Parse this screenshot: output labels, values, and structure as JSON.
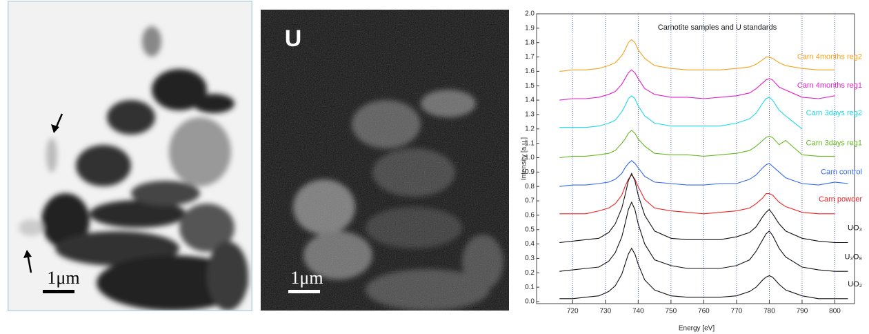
{
  "panels": [
    {
      "scale_bar": "1μm"
    },
    {
      "label": "U",
      "scale_bar": "1μm"
    }
  ],
  "chart_data": {
    "type": "line",
    "title": "Carnotite samples and U standards",
    "x_label": "Energy [eV]",
    "y_label": "Intensity [a.u.]",
    "xlim": [
      709,
      806
    ],
    "ylim": [
      0,
      2
    ],
    "xticks": [
      720,
      730,
      740,
      750,
      760,
      770,
      780,
      790,
      800
    ],
    "yticks": [
      {
        "value": 0,
        "label": "0.0"
      },
      0.1,
      0.2,
      0.3,
      0.4,
      0.5,
      0.6,
      0.7,
      0.8,
      0.9,
      {
        "value": 1,
        "label": "1.0"
      },
      1.1,
      1.2,
      1.3,
      1.4,
      1.5,
      1.6,
      1.7,
      1.8,
      1.9,
      {
        "value": 2,
        "label": "2.0"
      }
    ],
    "grid": "x",
    "x": [
      716,
      720,
      724,
      728,
      731,
      733,
      735,
      736,
      737,
      738,
      739,
      740,
      742,
      745,
      750,
      755,
      760,
      765,
      770,
      774,
      776,
      778,
      779,
      780,
      781,
      783,
      785,
      790,
      795,
      800,
      804
    ],
    "series": [
      {
        "name": "Carn 4months reg2",
        "color": "#f5a21c",
        "values": [
          1.6,
          1.61,
          1.61,
          1.62,
          1.64,
          1.66,
          1.71,
          1.75,
          1.8,
          1.82,
          1.8,
          1.75,
          1.69,
          1.64,
          1.62,
          1.61,
          1.61,
          1.61,
          1.62,
          1.63,
          1.65,
          1.68,
          1.7,
          1.7,
          1.69,
          1.66,
          1.64,
          1.62,
          1.61,
          1.61,
          null
        ]
      },
      {
        "name": "Carn 4months reg1",
        "color": "#e01ec8",
        "values": [
          1.4,
          1.41,
          1.41,
          1.42,
          1.44,
          1.46,
          1.51,
          1.55,
          1.59,
          1.61,
          1.59,
          1.55,
          1.48,
          1.44,
          1.42,
          1.42,
          1.41,
          1.42,
          1.43,
          1.45,
          1.48,
          1.52,
          1.54,
          1.55,
          1.54,
          1.49,
          1.47,
          1.42,
          1.41,
          1.43,
          null
        ]
      },
      {
        "name": "Carn 3days reg2",
        "color": "#1ed8ea",
        "values": [
          1.21,
          1.21,
          1.21,
          1.22,
          1.24,
          1.26,
          1.32,
          1.36,
          1.41,
          1.43,
          1.41,
          1.36,
          1.29,
          1.24,
          1.22,
          1.22,
          1.22,
          1.22,
          1.24,
          1.27,
          1.31,
          1.38,
          1.41,
          1.42,
          1.4,
          1.33,
          1.29,
          1.2,
          null,
          null,
          null
        ]
      },
      {
        "name": "Carn 3days reg1",
        "color": "#66b822",
        "values": [
          1.0,
          1.01,
          1.01,
          1.02,
          1.03,
          1.05,
          1.1,
          1.13,
          1.17,
          1.19,
          1.17,
          1.13,
          1.08,
          1.03,
          1.02,
          1.02,
          1.01,
          1.02,
          1.03,
          1.05,
          1.08,
          1.12,
          1.14,
          1.15,
          1.14,
          1.09,
          1.12,
          1.02,
          1.01,
          1.01,
          null
        ]
      },
      {
        "name": "Carn control",
        "color": "#3366ee",
        "values": [
          0.8,
          0.81,
          0.81,
          0.82,
          0.83,
          0.85,
          0.89,
          0.93,
          0.96,
          0.98,
          0.96,
          0.93,
          0.87,
          0.83,
          0.82,
          0.81,
          0.81,
          0.82,
          0.82,
          0.85,
          0.88,
          0.93,
          0.95,
          0.96,
          0.94,
          0.9,
          0.86,
          0.82,
          0.81,
          0.83,
          0.82
        ]
      },
      {
        "name": "Carn powder",
        "color": "#ee2222",
        "values": [
          0.61,
          0.61,
          0.61,
          0.63,
          0.65,
          0.68,
          0.74,
          0.8,
          0.85,
          0.88,
          0.85,
          0.8,
          0.71,
          0.65,
          0.63,
          0.62,
          0.61,
          0.62,
          0.63,
          0.65,
          0.68,
          0.72,
          0.75,
          0.75,
          0.74,
          0.69,
          0.66,
          0.62,
          0.61,
          0.61,
          null
        ]
      },
      {
        "name": "UO₃",
        "color": "#111111",
        "values": [
          0.41,
          0.42,
          0.43,
          0.44,
          0.48,
          0.54,
          0.65,
          0.74,
          0.84,
          0.89,
          0.84,
          0.74,
          0.6,
          0.49,
          0.44,
          0.43,
          0.43,
          0.43,
          0.45,
          0.48,
          0.52,
          0.59,
          0.62,
          0.64,
          0.61,
          0.54,
          0.49,
          0.44,
          0.42,
          0.41,
          0.41
        ]
      },
      {
        "name": "U₃O₈",
        "color": "#111111",
        "values": [
          0.21,
          0.22,
          0.23,
          0.24,
          0.28,
          0.34,
          0.45,
          0.54,
          0.64,
          0.69,
          0.64,
          0.54,
          0.4,
          0.29,
          0.25,
          0.23,
          0.23,
          0.23,
          0.25,
          0.29,
          0.35,
          0.43,
          0.47,
          0.49,
          0.46,
          0.37,
          0.31,
          0.24,
          0.22,
          0.21,
          0.21
        ]
      },
      {
        "name": "UO₂",
        "color": "#111111",
        "values": [
          0.02,
          0.02,
          0.03,
          0.04,
          0.07,
          0.11,
          0.19,
          0.26,
          0.33,
          0.37,
          0.33,
          0.26,
          0.15,
          0.08,
          0.04,
          0.03,
          0.03,
          0.03,
          0.04,
          0.07,
          0.1,
          0.15,
          0.17,
          0.18,
          0.17,
          0.12,
          0.08,
          0.04,
          0.02,
          0.02,
          0.02
        ]
      }
    ]
  }
}
